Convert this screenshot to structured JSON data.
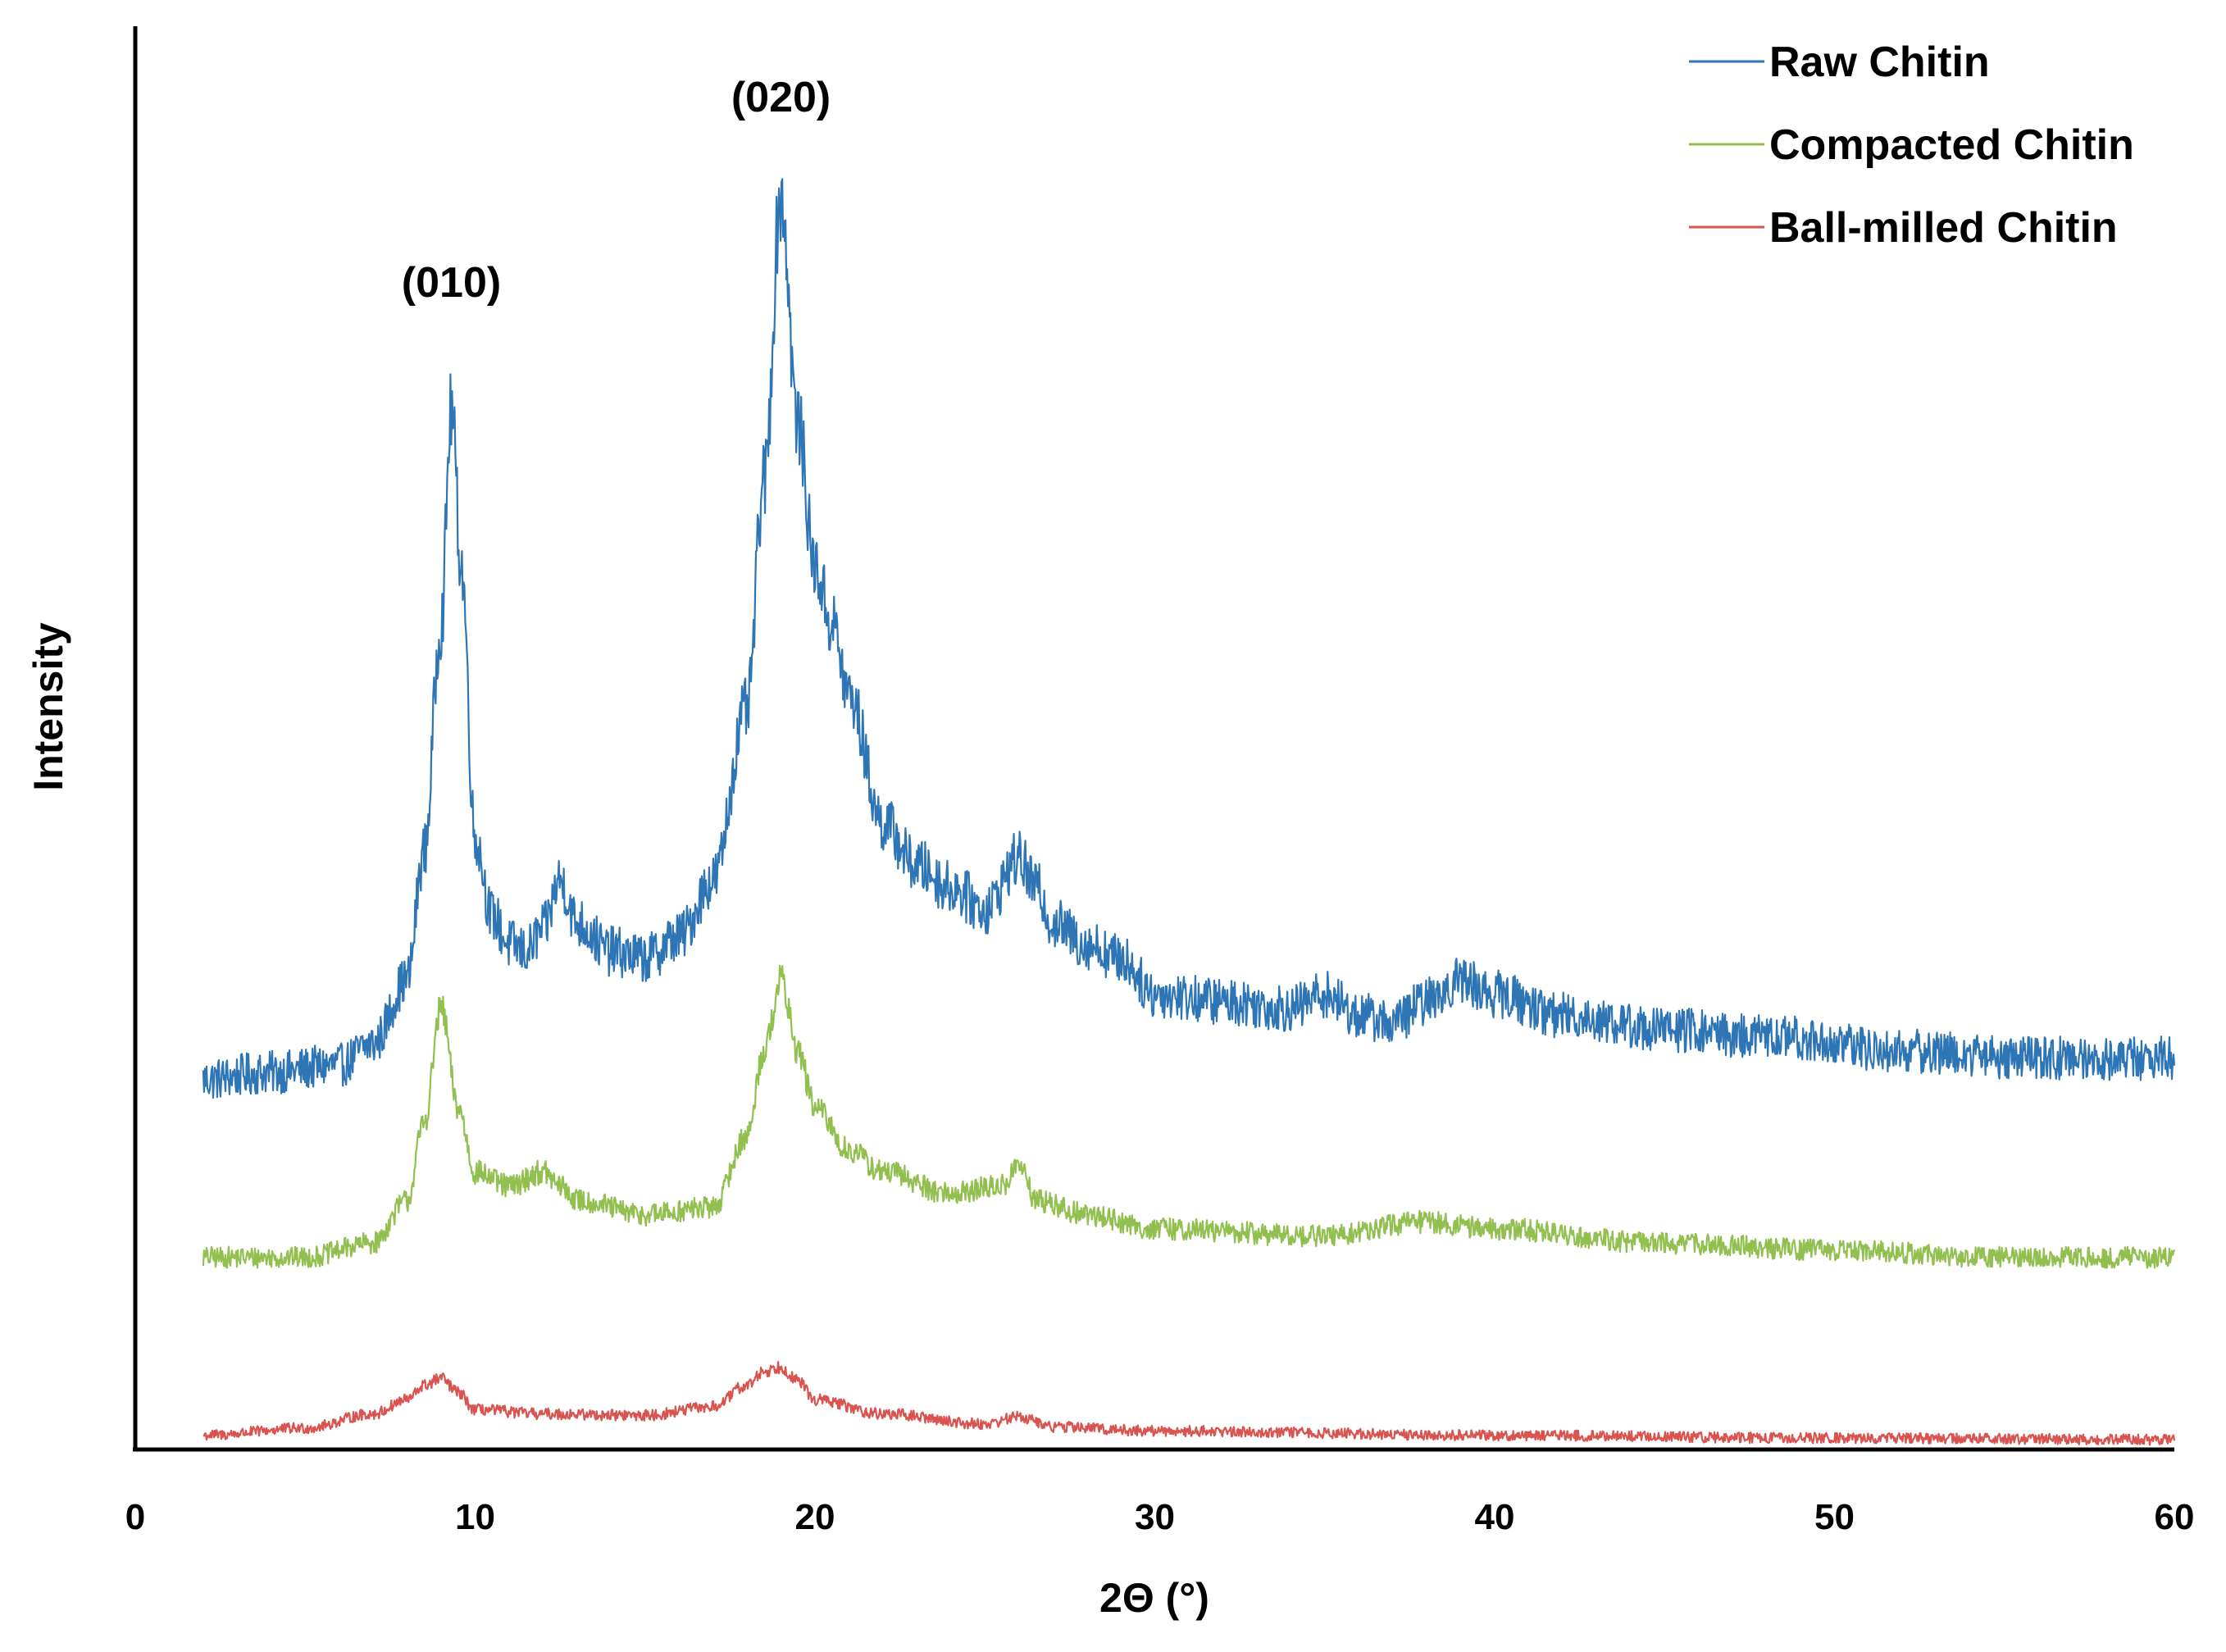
{
  "chart_data": {
    "type": "line",
    "title": "",
    "xlabel": "2Θ (°)",
    "ylabel": "Intensity",
    "xlim": [
      0,
      60
    ],
    "ylim": [
      0,
      100
    ],
    "x_ticks": [
      0,
      10,
      20,
      30,
      40,
      50,
      60
    ],
    "x_tick_labels": [
      "0",
      "10",
      "20",
      "30",
      "40",
      "50",
      "60"
    ],
    "grid": false,
    "legend_position": "top-right",
    "annotations": [
      {
        "text": "(010)",
        "x": 9.3,
        "y": 81
      },
      {
        "text": "(020)",
        "x": 19.0,
        "y": 94
      }
    ],
    "series": [
      {
        "name": "Raw Chitin",
        "color": "#2E75B6",
        "noise": 1.2,
        "x": [
          2,
          4,
          6,
          7,
          8,
          8.5,
          9,
          9.3,
          9.6,
          10,
          10.5,
          11,
          11.5,
          12,
          12.5,
          13,
          14,
          15,
          16,
          17,
          18,
          18.5,
          19,
          19.5,
          20,
          20.5,
          21,
          22,
          23,
          24,
          25,
          26,
          26.5,
          27,
          28,
          29,
          30,
          32,
          34,
          35,
          36,
          37,
          38,
          39,
          40,
          42,
          45,
          48,
          52,
          56,
          60
        ],
        "y": [
          26,
          26.5,
          27,
          28.5,
          33,
          42,
          58,
          73,
          62,
          43,
          37.5,
          35.5,
          35,
          36.5,
          40,
          37,
          35,
          34.5,
          36,
          40,
          52,
          68,
          88,
          72,
          62,
          58,
          53,
          44,
          41,
          39.5,
          38,
          41.5,
          39.5,
          37,
          35.5,
          34.5,
          32,
          31.5,
          31,
          32,
          30.5,
          30,
          31.5,
          33,
          32,
          30.5,
          29.5,
          29,
          28,
          27.5,
          27.5
        ]
      },
      {
        "name": "Compacted Chitin",
        "color": "#92C050",
        "noise": 0.8,
        "x": [
          2,
          5,
          7,
          8,
          8.5,
          9,
          9.5,
          10,
          11,
          12,
          12.5,
          13,
          15,
          17,
          18,
          18.5,
          19,
          19.5,
          20,
          21,
          22,
          24,
          25.5,
          26,
          26.5,
          28,
          30,
          35,
          38,
          40,
          45,
          50,
          55,
          60
        ],
        "y": [
          13.5,
          13.5,
          14.5,
          17.5,
          23,
          31,
          24,
          19.5,
          18.5,
          19.5,
          18.5,
          17.5,
          16.5,
          17,
          22,
          28,
          33,
          28,
          24,
          21,
          19.5,
          18,
          18.5,
          20,
          17.5,
          16.5,
          15.5,
          15,
          16,
          15.5,
          14.5,
          14,
          13.5,
          13.5
        ]
      },
      {
        "name": "Ball-milled Chitin",
        "color": "#D9534F",
        "noise": 0.6,
        "x": [
          2,
          5,
          7,
          8,
          8.5,
          9,
          9.5,
          10,
          12,
          15,
          17,
          18,
          18.5,
          19,
          19.5,
          20,
          22,
          25,
          26,
          27,
          30,
          40,
          50,
          60
        ],
        "y": [
          1,
          1.5,
          2.5,
          3.5,
          4.5,
          5,
          4,
          2.8,
          2.5,
          2.4,
          3,
          4.5,
          5.5,
          5.8,
          4.8,
          3.5,
          2.5,
          1.8,
          2.3,
          1.6,
          1.3,
          1,
          0.8,
          0.7
        ]
      }
    ]
  }
}
